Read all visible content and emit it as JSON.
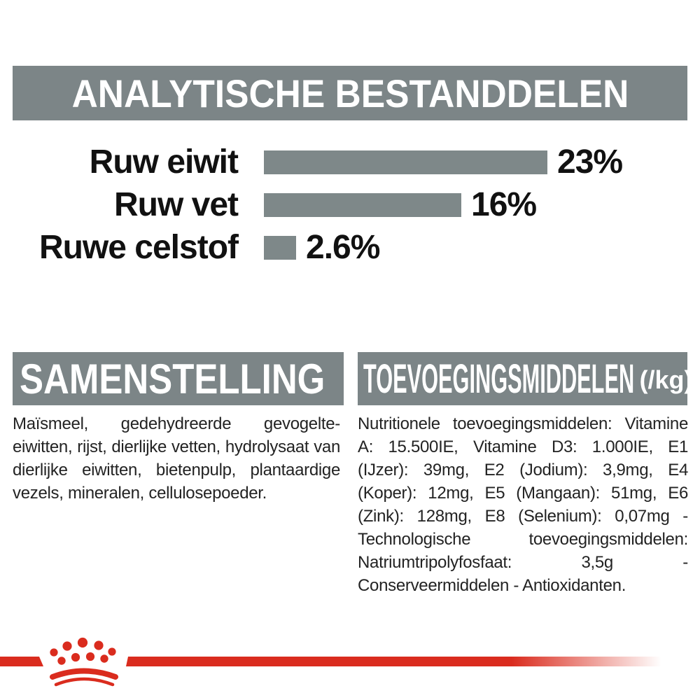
{
  "colors": {
    "banner_gray": "#7c8587",
    "bar_gray": "#7e8889",
    "brand_red": "#da2c1e",
    "text_black": "#1d1d1b",
    "background": "#ffffff"
  },
  "chart_data": {
    "type": "bar",
    "orientation": "horizontal",
    "title": "ANALYTISCHE BESTANDDELEN",
    "categories": [
      "Ruw eiwit",
      "Ruw vet",
      "Ruwe celstof"
    ],
    "values": [
      23,
      16,
      2.6
    ],
    "value_labels": [
      "23%",
      "16%",
      "2.6%"
    ],
    "unit": "%",
    "xlim": [
      0,
      25
    ],
    "grid": false,
    "legend": false,
    "bar_color": "#7e8889"
  },
  "composition": {
    "title": "SAMENSTELLING",
    "body": "Maïsmeel, gedehydreerde gevogelte-eiwitten, rijst, dierlijke vetten, hydrolysaat van dierlijke eiwitten, bietenpulp, plantaardige vezels, mineralen, cellulosepoeder."
  },
  "additives": {
    "title": "TOEVOEGINGSMIDDELEN",
    "title_suffix": "(/kg)",
    "body": "Nutritionele toevoegingsmiddelen: Vitamine A: 15.500IE, Vitamine D3: 1.000IE, E1 (IJzer): 39mg, E2 (Jodium): 3,9mg, E4 (Koper): 12mg, E5 (Mangaan): 51mg, E6 (Zink): 128mg, E8 (Selenium): 0,07mg - Technologische toevoegingsmiddelen: Natriumtripolyfosfaat: 3,5g - Conserveermiddelen - Antioxidanten."
  },
  "footer": {
    "logo": "royal-canin-crown"
  }
}
